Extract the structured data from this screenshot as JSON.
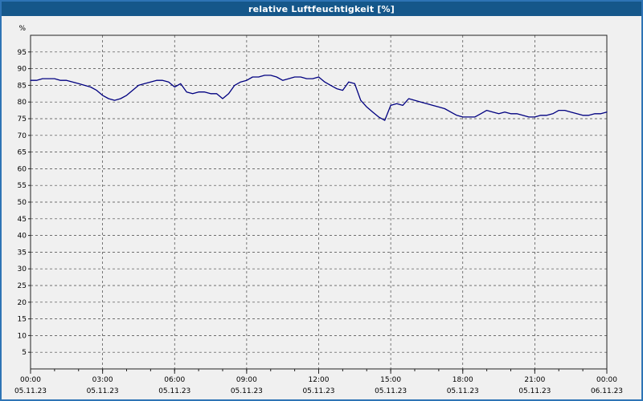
{
  "window": {
    "title": "relative Luftfeuchtigkeit [%]"
  },
  "colors": {
    "titlebar_bg": "#15578a",
    "frame_border": "#2e74b5",
    "plot_bg": "#f0f0f0",
    "grid": "#444444",
    "axis": "#222222",
    "line": "#000080",
    "tick_text": "#000000"
  },
  "chart_data": {
    "type": "line",
    "title": "relative Luftfeuchtigkeit [%]",
    "xlabel": "",
    "ylabel": "%",
    "unit_label": "%",
    "ylim": [
      0,
      100
    ],
    "xlim_hours": [
      0,
      24
    ],
    "grid": "dashed",
    "legend_position": "none",
    "yticks": [
      5,
      10,
      15,
      20,
      25,
      30,
      35,
      40,
      45,
      50,
      55,
      60,
      65,
      70,
      75,
      80,
      85,
      90,
      95
    ],
    "x_major_ticks": [
      {
        "hour": 0,
        "time": "00:00",
        "date": "05.11.23"
      },
      {
        "hour": 3,
        "time": "03:00",
        "date": "05.11.23"
      },
      {
        "hour": 6,
        "time": "06:00",
        "date": "05.11.23"
      },
      {
        "hour": 9,
        "time": "09:00",
        "date": "05.11.23"
      },
      {
        "hour": 12,
        "time": "12:00",
        "date": "05.11.23"
      },
      {
        "hour": 15,
        "time": "15:00",
        "date": "05.11.23"
      },
      {
        "hour": 18,
        "time": "18:00",
        "date": "05.11.23"
      },
      {
        "hour": 21,
        "time": "21:00",
        "date": "05.11.23"
      },
      {
        "hour": 24,
        "time": "00:00",
        "date": "06.11.23"
      }
    ],
    "x_minor_tick_every_hours": 1,
    "series": [
      {
        "name": "relative Luftfeuchtigkeit",
        "x_hours": [
          0,
          0.25,
          0.5,
          0.75,
          1,
          1.25,
          1.5,
          1.75,
          2,
          2.25,
          2.5,
          2.75,
          3,
          3.25,
          3.5,
          3.75,
          4,
          4.25,
          4.5,
          4.75,
          5,
          5.25,
          5.5,
          5.75,
          6,
          6.25,
          6.5,
          6.75,
          7,
          7.25,
          7.5,
          7.75,
          8,
          8.25,
          8.5,
          8.75,
          9,
          9.25,
          9.5,
          9.75,
          10,
          10.25,
          10.5,
          10.75,
          11,
          11.25,
          11.5,
          11.75,
          12,
          12.25,
          12.5,
          12.75,
          13,
          13.25,
          13.5,
          13.75,
          14,
          14.25,
          14.5,
          14.75,
          15,
          15.25,
          15.5,
          15.75,
          16,
          16.25,
          16.5,
          16.75,
          17,
          17.25,
          17.5,
          17.75,
          18,
          18.25,
          18.5,
          18.75,
          19,
          19.25,
          19.5,
          19.75,
          20,
          20.25,
          20.5,
          20.75,
          21,
          21.25,
          21.5,
          21.75,
          22,
          22.25,
          22.5,
          22.75,
          23,
          23.25,
          23.5,
          23.75,
          24
        ],
        "values": [
          86.5,
          86.5,
          87,
          87,
          87,
          86.5,
          86.5,
          86,
          85.5,
          85,
          84.5,
          83.5,
          82,
          81,
          80.5,
          81,
          82,
          83.5,
          85,
          85.5,
          86,
          86.5,
          86.5,
          86,
          84.5,
          85.5,
          83,
          82.5,
          83,
          83,
          82.5,
          82.5,
          81,
          82.5,
          85,
          86,
          86.5,
          87.5,
          87.5,
          88,
          88,
          87.5,
          86.5,
          87,
          87.5,
          87.5,
          87,
          87,
          87.5,
          86,
          85,
          84,
          83.5,
          86,
          85.5,
          80.5,
          78.5,
          77,
          75.5,
          74.5,
          79,
          79.5,
          79,
          81,
          80.5,
          80,
          79.5,
          79,
          78.5,
          78,
          77,
          76,
          75.5,
          75.5,
          75.5,
          76.5,
          77.5,
          77,
          76.5,
          77,
          76.5,
          76.5,
          76,
          75.5,
          75.5,
          76,
          76,
          76.5,
          77.5,
          77.5,
          77,
          76.5,
          76,
          76,
          76.5,
          76.5,
          77
        ]
      }
    ]
  }
}
